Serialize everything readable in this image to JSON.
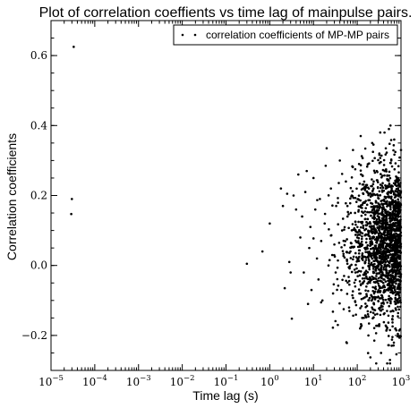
{
  "chart_data": {
    "type": "scatter",
    "title": "Plot of correlation coeffients vs time lag of mainpulse pairs.",
    "xlabel": "Time lag (s)",
    "ylabel": "Correlation coefficients",
    "xscale": "log",
    "xlim": [
      1e-05,
      1000
    ],
    "ylim": [
      -0.3,
      0.7
    ],
    "x_ticks": [
      {
        "value": 1e-05,
        "base": "10",
        "exp": "−5"
      },
      {
        "value": 0.0001,
        "base": "10",
        "exp": "−4"
      },
      {
        "value": 0.001,
        "base": "10",
        "exp": "−3"
      },
      {
        "value": 0.01,
        "base": "10",
        "exp": "−2"
      },
      {
        "value": 0.1,
        "base": "10",
        "exp": "−1"
      },
      {
        "value": 1,
        "base": "10",
        "exp": "0"
      },
      {
        "value": 10,
        "base": "10",
        "exp": "1"
      },
      {
        "value": 100,
        "base": "10",
        "exp": "2"
      },
      {
        "value": 1000,
        "base": "10",
        "exp": "3"
      }
    ],
    "y_ticks": [
      {
        "value": -0.2,
        "label": "−0.2"
      },
      {
        "value": 0.0,
        "label": "0.0"
      },
      {
        "value": 0.2,
        "label": "0.2"
      },
      {
        "value": 0.4,
        "label": "0.4"
      },
      {
        "value": 0.6,
        "label": "0.6"
      }
    ],
    "grid": false,
    "legend_position": "top-right",
    "series": [
      {
        "name": "correlation coefficients of MP-MP pairs",
        "color": "#000000",
        "marker": "dot",
        "points": [
          [
            3.3e-05,
            0.625
          ],
          [
            3e-05,
            0.19
          ],
          [
            2.9e-05,
            0.147
          ],
          [
            0.3,
            0.005
          ],
          [
            0.68,
            0.04
          ],
          [
            1.0,
            0.12
          ],
          [
            1.8,
            0.22
          ],
          [
            2.0,
            0.17
          ],
          [
            2.2,
            -0.065
          ],
          [
            2.5,
            0.205
          ],
          [
            3.0,
            -0.02
          ],
          [
            2.8,
            0.01
          ],
          [
            3.5,
            0.2
          ],
          [
            3.2,
            -0.152
          ],
          [
            4.5,
            0.26
          ],
          [
            4.0,
            0.16
          ],
          [
            5.0,
            0.08
          ],
          [
            5.5,
            0.14
          ],
          [
            6.0,
            -0.02
          ],
          [
            6.5,
            0.21
          ],
          [
            7.0,
            0.27
          ],
          [
            7.5,
            -0.11
          ],
          [
            8.0,
            0.05
          ],
          [
            8.5,
            0.11
          ],
          [
            9.0,
            -0.07
          ],
          [
            10.0,
            0.25
          ],
          [
            11.0,
            0.16
          ],
          [
            12.0,
            0.02
          ],
          [
            13.0,
            -0.04
          ],
          [
            14.0,
            0.19
          ],
          [
            15.0,
            0.07
          ],
          [
            16.0,
            -0.1
          ],
          [
            18.0,
            0.12
          ],
          [
            19.0,
            0.285
          ],
          [
            20.0,
            0.335
          ],
          [
            22.0,
            0.0
          ],
          [
            25.0,
            0.22
          ],
          [
            28.0,
            -0.08
          ],
          [
            30.0,
            0.06
          ],
          [
            33.0,
            0.17
          ],
          [
            36.0,
            -0.17
          ],
          [
            40.0,
            0.3
          ],
          [
            45.0,
            0.1
          ],
          [
            50.0,
            -0.03
          ],
          [
            55.0,
            0.24
          ],
          [
            60.0,
            0.14
          ],
          [
            65.0,
            -0.12
          ],
          [
            70.0,
            0.04
          ],
          [
            75.0,
            0.2
          ],
          [
            80.0,
            0.33
          ],
          [
            90.0,
            -0.06
          ],
          [
            100.0,
            0.08
          ],
          [
            110.0,
            0.29
          ],
          [
            120.0,
            0.37
          ],
          [
            130.0,
            -0.15
          ],
          [
            140.0,
            0.18
          ],
          [
            150.0,
            0.01
          ],
          [
            160.0,
            0.23
          ],
          [
            180.0,
            -0.2
          ],
          [
            200.0,
            0.12
          ],
          [
            220.0,
            0.35
          ],
          [
            250.0,
            -0.09
          ],
          [
            280.0,
            0.27
          ],
          [
            300.0,
            0.05
          ],
          [
            320.0,
            0.32
          ],
          [
            350.0,
            -0.25
          ],
          [
            380.0,
            0.16
          ],
          [
            400.0,
            -0.04
          ],
          [
            420.0,
            0.38
          ],
          [
            450.0,
            0.22
          ],
          [
            480.0,
            -0.13
          ],
          [
            500.0,
            0.1
          ],
          [
            530.0,
            0.39
          ],
          [
            560.0,
            -0.27
          ],
          [
            600.0,
            0.3
          ],
          [
            650.0,
            0.02
          ],
          [
            700.0,
            0.36
          ],
          [
            750.0,
            -0.18
          ],
          [
            800.0,
            0.14
          ],
          [
            850.0,
            0.25
          ],
          [
            900.0,
            -0.06
          ],
          [
            950.0,
            0.07
          ],
          [
            1000.0,
            0.33
          ]
        ]
      }
    ],
    "dense_cluster": {
      "note_on_screen": false,
      "x_range": [
        10,
        1000
      ],
      "y_range": [
        -0.28,
        0.4
      ],
      "count": 1800
    }
  }
}
